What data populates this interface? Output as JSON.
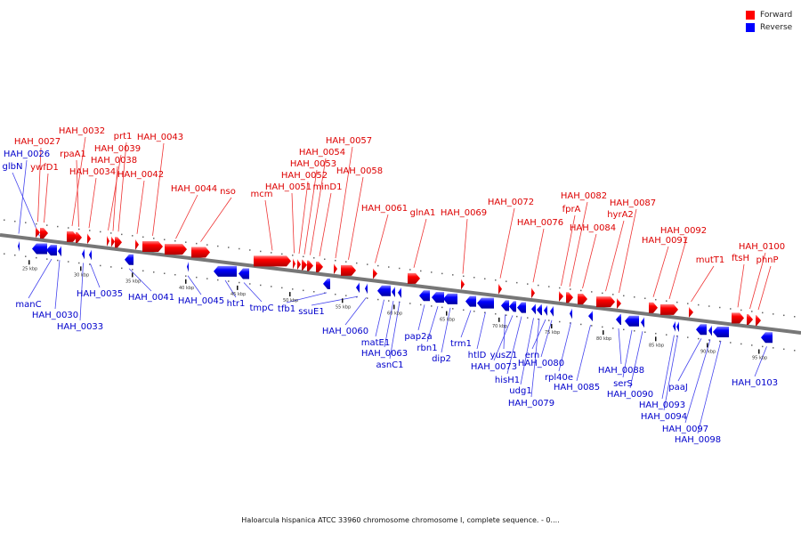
{
  "legend": {
    "items": [
      {
        "label": "Forward",
        "color": "#ff0000"
      },
      {
        "label": "Reverse",
        "color": "#0000ff"
      }
    ]
  },
  "caption": "Haloarcula hispanica ATCC 33960 chromosome chromosome I, complete sequence. - 0....",
  "colors": {
    "forward": "#ff0000",
    "reverse": "#0000ff",
    "forward_label": "#dd0000",
    "reverse_label": "#0000cc",
    "backbone": "#777777"
  },
  "kbp_ticks": [
    "25 kbp",
    "30 kbp",
    "35 kbp",
    "40 kbp",
    "45 kbp",
    "50 kbp",
    "55 kbp",
    "60 kbp",
    "65 kbp",
    "70 kbp",
    "75 kbp",
    "80 kbp",
    "85 kbp",
    "90 kbp",
    "95 kbp"
  ],
  "forward_genes": [
    "HAH_0027",
    "ywfD1",
    "HAH_0032",
    "rpaA1",
    "HAH_0034",
    "HAH_0039",
    "HAH_0038",
    "prt1",
    "HAH_0042",
    "HAH_0043",
    "HAH_0044",
    "nso",
    "mcm",
    "HAH_0051",
    "HAH_0052",
    "HAH_0053",
    "HAH_0054",
    "minD1",
    "HAH_0057",
    "HAH_0058",
    "HAH_0061",
    "glnA1",
    "HAH_0069",
    "HAH_0072",
    "HAH_0076",
    "fprA",
    "HAH_0082",
    "HAH_0084",
    "hyrA2",
    "HAH_0087",
    "HAH_0091",
    "HAH_0092",
    "mutT1",
    "ftsH",
    "HAH_0100",
    "phnP"
  ],
  "reverse_genes": [
    "HAH_0026",
    "glbN",
    "manC",
    "HAH_0030",
    "HAH_0033",
    "HAH_0035",
    "HAH_0041",
    "HAH_0045",
    "htr1",
    "tmpC",
    "tfb1",
    "ssuE1",
    "HAH_0060",
    "matE1",
    "HAH_0063",
    "asnC1",
    "pap2a",
    "rbn1",
    "dip2",
    "trm1",
    "htlD",
    "yusZ1",
    "HAH_0073",
    "hisH1",
    "udg1",
    "HAH_0079",
    "ern",
    "HAH_0080",
    "rpl40e",
    "HAH_0085",
    "HAH_0088",
    "serS",
    "HAH_0090",
    "HAH_0093",
    "HAH_0094",
    "paaJ",
    "HAH_0097",
    "HAH_0098",
    "HAH_0103"
  ]
}
